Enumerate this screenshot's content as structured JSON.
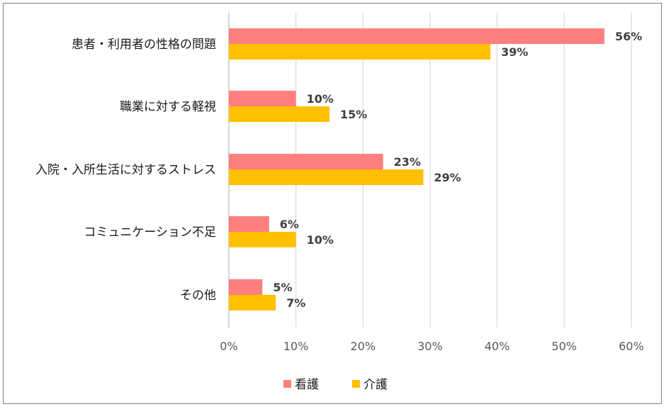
{
  "chart_data": {
    "type": "bar",
    "orientation": "horizontal",
    "categories": [
      "患者・利用者の性格の問題",
      "職業に対する軽視",
      "入院・入所生活に対するストレス",
      "コミュニケーション不足",
      "その他"
    ],
    "series": [
      {
        "name": "看護",
        "values": [
          56,
          10,
          23,
          6,
          5
        ],
        "labels": [
          "56%",
          "10%",
          "23%",
          "6%",
          "5%"
        ],
        "color": "#ff7f7f"
      },
      {
        "name": "介護",
        "values": [
          39,
          15,
          29,
          10,
          7
        ],
        "labels": [
          "39%",
          "15%",
          "29%",
          "10%",
          "7%"
        ],
        "color": "#ffc000"
      }
    ],
    "xlim": [
      0,
      60
    ],
    "x_ticks": [
      0,
      10,
      20,
      30,
      40,
      50,
      60
    ],
    "x_tick_labels": [
      "0%",
      "10%",
      "20%",
      "30%",
      "40%",
      "50%",
      "60%"
    ],
    "grid": "vertical",
    "legend_position": "bottom"
  }
}
